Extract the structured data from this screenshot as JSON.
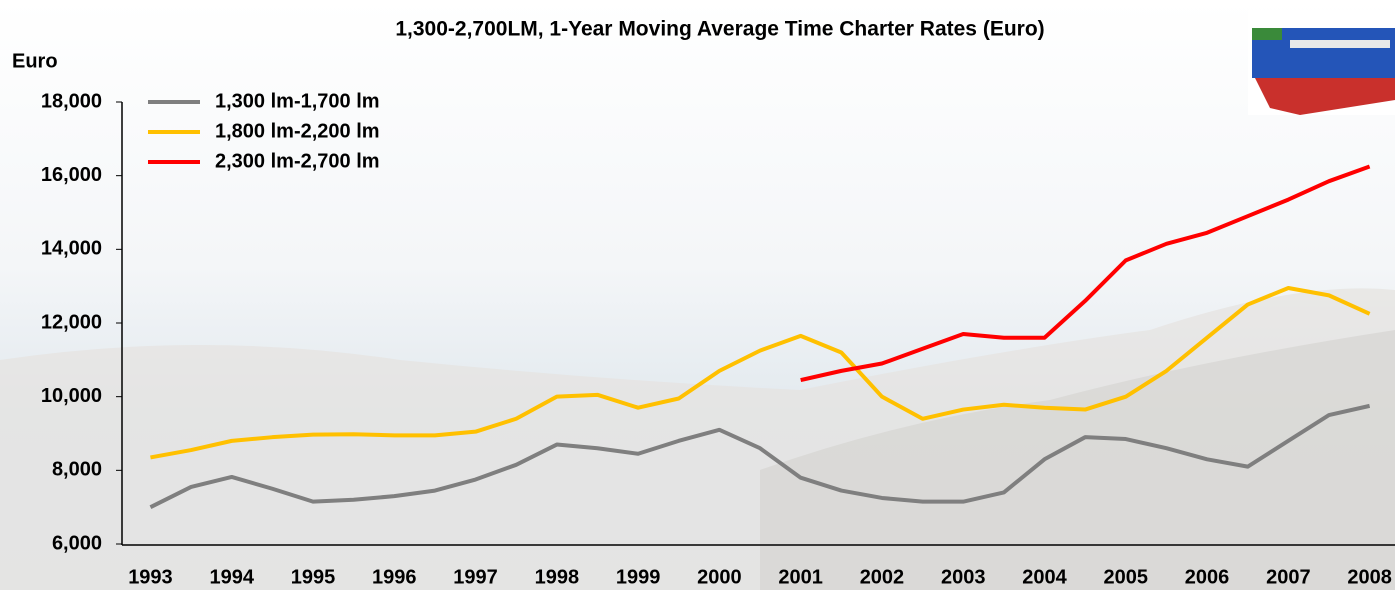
{
  "chart_data": {
    "type": "line",
    "title": "1,300-2,700LM, 1-Year Moving Average Time Charter Rates (Euro)",
    "y_label": "Euro",
    "x": [
      1993,
      1993.5,
      1994,
      1994.5,
      1995,
      1995.5,
      1996,
      1996.5,
      1997,
      1997.5,
      1998,
      1998.5,
      1999,
      1999.5,
      2000,
      2000.5,
      2001,
      2001.5,
      2002,
      2002.5,
      2003,
      2003.5,
      2004,
      2004.5,
      2005,
      2005.5,
      2006,
      2006.5,
      2007,
      2007.5,
      2008
    ],
    "xlim": [
      1992.65,
      2008.3
    ],
    "xticks": [
      1993,
      1994,
      1995,
      1996,
      1997,
      1998,
      1999,
      2000,
      2001,
      2002,
      2003,
      2004,
      2005,
      2006,
      2007,
      2008
    ],
    "ylim": [
      6000,
      18000
    ],
    "yticks": [
      {
        "value": 6000,
        "label": "6,000"
      },
      {
        "value": 8000,
        "label": "8,000"
      },
      {
        "value": 10000,
        "label": "10,000"
      },
      {
        "value": 12000,
        "label": "12,000"
      },
      {
        "value": 14000,
        "label": "14,000"
      },
      {
        "value": 16000,
        "label": "16,000"
      },
      {
        "value": 18000,
        "label": "18,000"
      }
    ],
    "grid": false,
    "legend": "upper left",
    "series": [
      {
        "name": "1,300 lm-1,700 lm",
        "color": "#7f7f7f",
        "values": [
          7000,
          7550,
          7820,
          7500,
          7150,
          7200,
          7300,
          7450,
          7750,
          8150,
          8700,
          8600,
          8450,
          8800,
          9100,
          8600,
          7800,
          7450,
          7250,
          7150,
          7150,
          7400,
          8300,
          8900,
          8850,
          8600,
          8300,
          8100,
          8800,
          9500,
          9750
        ]
      },
      {
        "name": "1,800 lm-2,200 lm",
        "color": "#ffc000",
        "values": [
          8350,
          8550,
          8800,
          8900,
          8970,
          8980,
          8950,
          8950,
          9050,
          9400,
          10000,
          10050,
          9700,
          9950,
          10700,
          11250,
          11650,
          11200,
          10000,
          9400,
          9650,
          9780,
          9700,
          9650,
          10000,
          10700,
          11600,
          12500,
          12950,
          12750,
          12250
        ]
      },
      {
        "name": "2,300 lm-2,700 lm",
        "color": "#ff0000",
        "values": [
          null,
          null,
          null,
          null,
          null,
          null,
          null,
          null,
          null,
          null,
          null,
          null,
          null,
          null,
          null,
          null,
          10450,
          10700,
          10900,
          11300,
          11700,
          11600,
          11600,
          12600,
          13700,
          14150,
          14450,
          14900,
          15350,
          15850,
          16250
        ]
      }
    ]
  }
}
